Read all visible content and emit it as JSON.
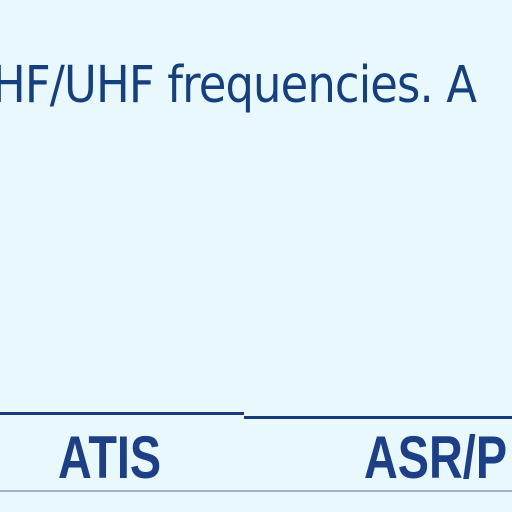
{
  "content": {
    "paragraph_fragment": "HF/UHF frequencies. A"
  },
  "table_header": {
    "col_1": "ATIS",
    "col_2": "ASR/P"
  }
}
